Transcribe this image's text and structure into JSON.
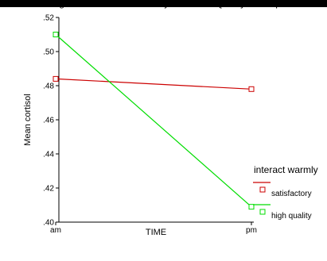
{
  "chart_data": {
    "type": "line",
    "title": "Estimated Marginal Means of Cortisol by TIME and Quality of Responsiveness",
    "xlabel": "TIME",
    "ylabel": "Mean cortisol",
    "categories": [
      "am",
      "pm"
    ],
    "ylim": [
      0.4,
      0.52
    ],
    "yticks": [
      ".40",
      ".42",
      ".44",
      ".46",
      ".48",
      ".50",
      ".52"
    ],
    "legend_title": "interact warmly",
    "legend_position": "right",
    "grid": false,
    "series": [
      {
        "name": "satisfactory",
        "values": [
          0.484,
          0.478
        ],
        "color": "#cc0000",
        "marker": "square-open"
      },
      {
        "name": "high quality",
        "values": [
          0.51,
          0.409
        ],
        "color": "#00dd00",
        "marker": "square-open"
      }
    ],
    "title_color": "#ff2a00",
    "header_color": "#000000"
  }
}
